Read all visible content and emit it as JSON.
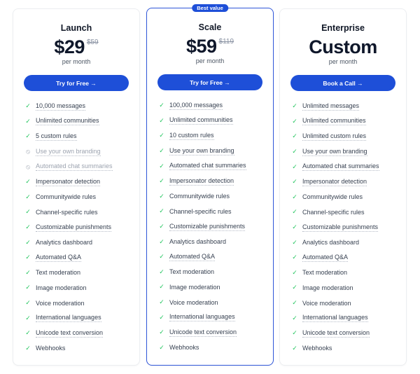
{
  "plans": [
    {
      "name": "Launch",
      "price": "$29",
      "old_price": "$59",
      "period": "per month",
      "cta": "Try for Free →",
      "featured": false,
      "features": [
        {
          "label": "10,000 messages",
          "included": true,
          "tooltip": true
        },
        {
          "label": "Unlimited communities",
          "included": true,
          "tooltip": true
        },
        {
          "label": "5 custom rules",
          "included": true,
          "tooltip": true
        },
        {
          "label": "Use your own branding",
          "included": false,
          "tooltip": true
        },
        {
          "label": "Automated chat summaries",
          "included": false,
          "tooltip": true
        },
        {
          "label": "Impersonator detection",
          "included": true,
          "tooltip": true
        },
        {
          "label": "Communitywide rules",
          "included": true,
          "tooltip": false
        },
        {
          "label": "Channel-specific rules",
          "included": true,
          "tooltip": false
        },
        {
          "label": "Customizable punishments",
          "included": true,
          "tooltip": true
        },
        {
          "label": "Analytics dashboard",
          "included": true,
          "tooltip": false
        },
        {
          "label": "Automated Q&A",
          "included": true,
          "tooltip": true
        },
        {
          "label": "Text moderation",
          "included": true,
          "tooltip": false
        },
        {
          "label": "Image moderation",
          "included": true,
          "tooltip": false
        },
        {
          "label": "Voice moderation",
          "included": true,
          "tooltip": false
        },
        {
          "label": "International languages",
          "included": true,
          "tooltip": true
        },
        {
          "label": "Unicode text conversion",
          "included": true,
          "tooltip": true
        },
        {
          "label": "Webhooks",
          "included": true,
          "tooltip": false
        }
      ]
    },
    {
      "name": "Scale",
      "price": "$59",
      "old_price": "$119",
      "period": "per month",
      "cta": "Try for Free →",
      "featured": true,
      "badge": "Best value",
      "features": [
        {
          "label": "100,000 messages",
          "included": true,
          "tooltip": true
        },
        {
          "label": "Unlimited communities",
          "included": true,
          "tooltip": true
        },
        {
          "label": "10 custom rules",
          "included": true,
          "tooltip": true
        },
        {
          "label": "Use your own branding",
          "included": true,
          "tooltip": true
        },
        {
          "label": "Automated chat summaries",
          "included": true,
          "tooltip": true
        },
        {
          "label": "Impersonator detection",
          "included": true,
          "tooltip": true
        },
        {
          "label": "Communitywide rules",
          "included": true,
          "tooltip": false
        },
        {
          "label": "Channel-specific rules",
          "included": true,
          "tooltip": false
        },
        {
          "label": "Customizable punishments",
          "included": true,
          "tooltip": true
        },
        {
          "label": "Analytics dashboard",
          "included": true,
          "tooltip": false
        },
        {
          "label": "Automated Q&A",
          "included": true,
          "tooltip": true
        },
        {
          "label": "Text moderation",
          "included": true,
          "tooltip": false
        },
        {
          "label": "Image moderation",
          "included": true,
          "tooltip": false
        },
        {
          "label": "Voice moderation",
          "included": true,
          "tooltip": false
        },
        {
          "label": "International languages",
          "included": true,
          "tooltip": true
        },
        {
          "label": "Unicode text conversion",
          "included": true,
          "tooltip": true
        },
        {
          "label": "Webhooks",
          "included": true,
          "tooltip": false
        }
      ]
    },
    {
      "name": "Enterprise",
      "price": "Custom",
      "old_price": "",
      "period": "per month",
      "cta": "Book a Call →",
      "featured": false,
      "features": [
        {
          "label": "Unlimited messages",
          "included": true,
          "tooltip": true
        },
        {
          "label": "Unlimited communities",
          "included": true,
          "tooltip": true
        },
        {
          "label": "Unlimited custom rules",
          "included": true,
          "tooltip": true
        },
        {
          "label": "Use your own branding",
          "included": true,
          "tooltip": true
        },
        {
          "label": "Automated chat summaries",
          "included": true,
          "tooltip": true
        },
        {
          "label": "Impersonator detection",
          "included": true,
          "tooltip": true
        },
        {
          "label": "Communitywide rules",
          "included": true,
          "tooltip": false
        },
        {
          "label": "Channel-specific rules",
          "included": true,
          "tooltip": false
        },
        {
          "label": "Customizable punishments",
          "included": true,
          "tooltip": true
        },
        {
          "label": "Analytics dashboard",
          "included": true,
          "tooltip": false
        },
        {
          "label": "Automated Q&A",
          "included": true,
          "tooltip": true
        },
        {
          "label": "Text moderation",
          "included": true,
          "tooltip": false
        },
        {
          "label": "Image moderation",
          "included": true,
          "tooltip": false
        },
        {
          "label": "Voice moderation",
          "included": true,
          "tooltip": false
        },
        {
          "label": "International languages",
          "included": true,
          "tooltip": true
        },
        {
          "label": "Unicode text conversion",
          "included": true,
          "tooltip": true
        },
        {
          "label": "Webhooks",
          "included": true,
          "tooltip": false
        }
      ]
    }
  ],
  "colors": {
    "accent": "#1e4fd8",
    "check": "#22c55e",
    "excluded": "#9ca3af"
  }
}
